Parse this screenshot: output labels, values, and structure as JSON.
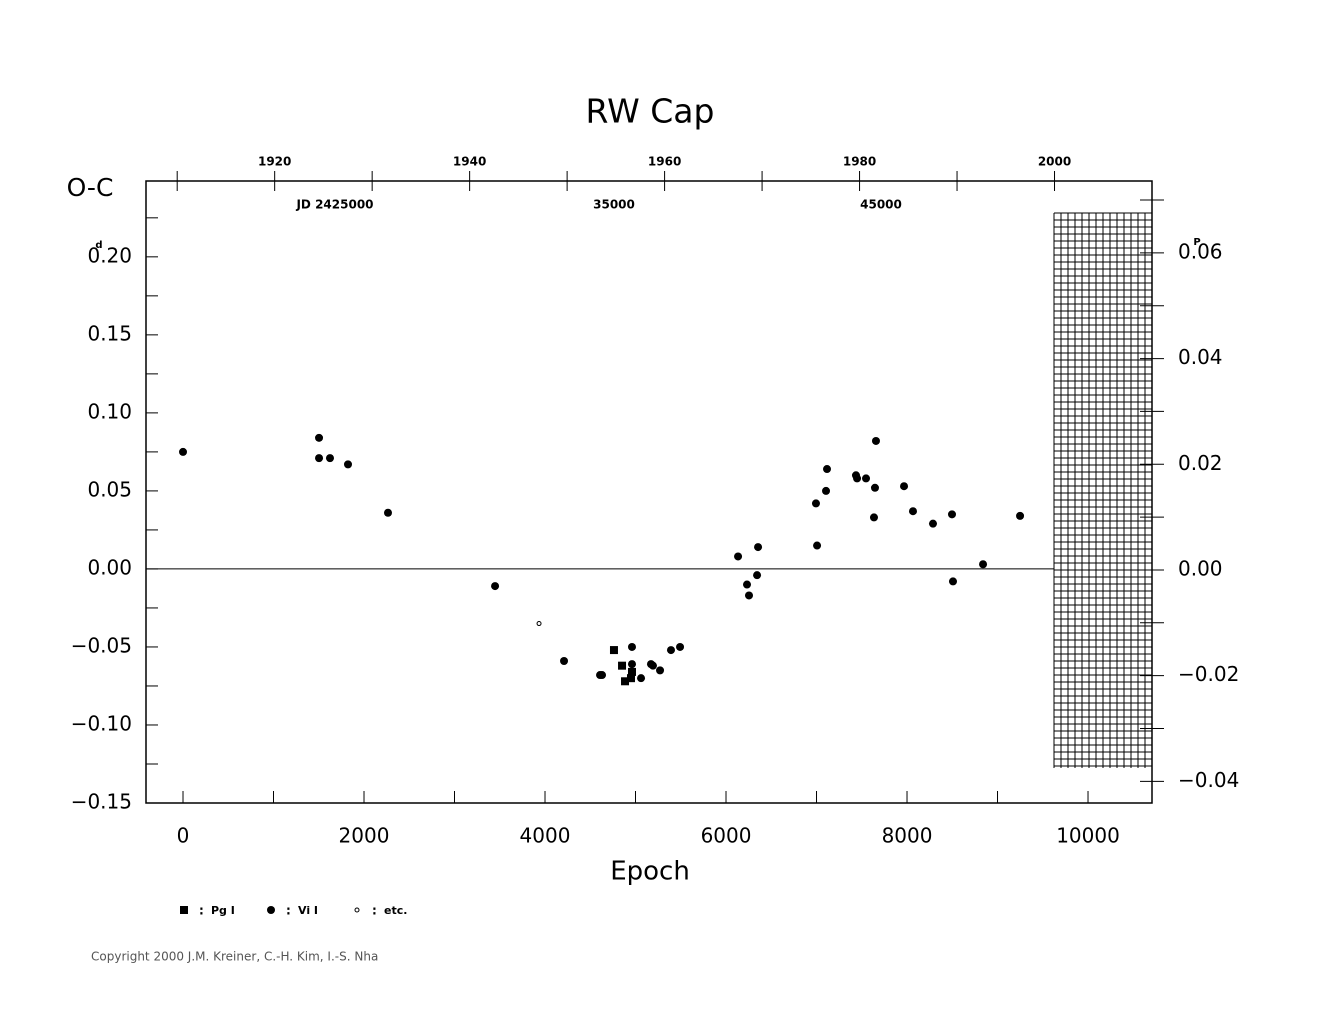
{
  "chart_data": {
    "type": "scatter",
    "title": "RW Cap",
    "x_label": "Epoch",
    "y_label": "O-C",
    "y_unit": "d",
    "y2_unit": "P",
    "jd_labels": [
      "JD 2425000",
      "35000",
      "45000"
    ],
    "xlim": [
      -409,
      10707
    ],
    "xticks": [
      0,
      2000,
      4000,
      6000,
      8000,
      10000
    ],
    "xminor": [
      1000,
      3000,
      5000,
      7000,
      9000
    ],
    "ylim": [
      -0.15,
      0.2486
    ],
    "yticks": [
      {
        "value": -0.15,
        "label": "−0.15"
      },
      {
        "value": -0.1,
        "label": "−0.10"
      },
      {
        "value": -0.05,
        "label": "−0.05"
      },
      {
        "value": 0,
        "label": "0.00"
      },
      0.05,
      {
        "value": 0.1,
        "label": "0.10"
      },
      0.15,
      {
        "value": 0.2,
        "label": "0.20"
      }
    ],
    "yminor": [
      -0.125,
      -0.075,
      -0.025,
      0.025,
      0.075,
      0.125,
      0.175,
      0.225
    ],
    "y2lim": [
      -0.0441,
      0.0736
    ],
    "y2ticks": [
      {
        "value": -0.04,
        "label": "−0.04"
      },
      {
        "value": -0.02,
        "label": "−0.02"
      },
      {
        "value": 0,
        "label": "0.00"
      },
      0.02,
      0.04,
      0.06
    ],
    "y2minor": [
      -0.03,
      -0.01,
      0.01,
      0.03,
      0.05,
      0.07
    ],
    "x2lim": [
      1906.8,
      2010.0
    ],
    "x2ticks": [
      1920,
      1940,
      1960,
      1980,
      2000
    ],
    "x2minor": [
      1910,
      1930,
      1950,
      1970,
      1990
    ],
    "legend_sep": ":",
    "series": [
      {
        "name": "Pg I",
        "marker": "square",
        "color": "#000000",
        "x": [
          4762,
          4851,
          4884,
          4950,
          4961
        ],
        "values": [
          -0.052,
          -0.062,
          -0.072,
          -0.07,
          -0.066
        ]
      },
      {
        "name": "Vi I",
        "marker": "circle",
        "color": "#000000",
        "x": [
          0,
          1503,
          1503,
          1624,
          1823,
          2265,
          3448,
          4210,
          4608,
          4630,
          4961,
          4961,
          5061,
          5171,
          5193,
          5271,
          5392,
          5492,
          6133,
          6232,
          6254,
          6343,
          6354,
          6994,
          7006,
          7105,
          7116,
          7436,
          7448,
          7547,
          7646,
          7657,
          7635,
          7967,
          8066,
          8287,
          8497,
          8508,
          8840,
          9249
        ],
        "values": [
          0.075,
          0.084,
          0.071,
          0.071,
          0.067,
          0.036,
          -0.011,
          -0.059,
          -0.068,
          -0.068,
          -0.05,
          -0.061,
          -0.07,
          -0.061,
          -0.062,
          -0.065,
          -0.052,
          -0.05,
          0.008,
          -0.01,
          -0.017,
          -0.004,
          0.014,
          0.042,
          0.015,
          0.05,
          0.064,
          0.06,
          0.058,
          0.058,
          0.052,
          0.082,
          0.033,
          0.053,
          0.037,
          0.029,
          0.035,
          -0.008,
          0.003,
          0.034
        ]
      },
      {
        "name": "etc.",
        "marker": "dot",
        "color": "#000000",
        "x": [
          3934
        ],
        "values": [
          -0.035
        ]
      }
    ],
    "copyright": "Copyright 2000 J.M. Kreiner, C.-H. Kim, I.-S. Nha"
  }
}
